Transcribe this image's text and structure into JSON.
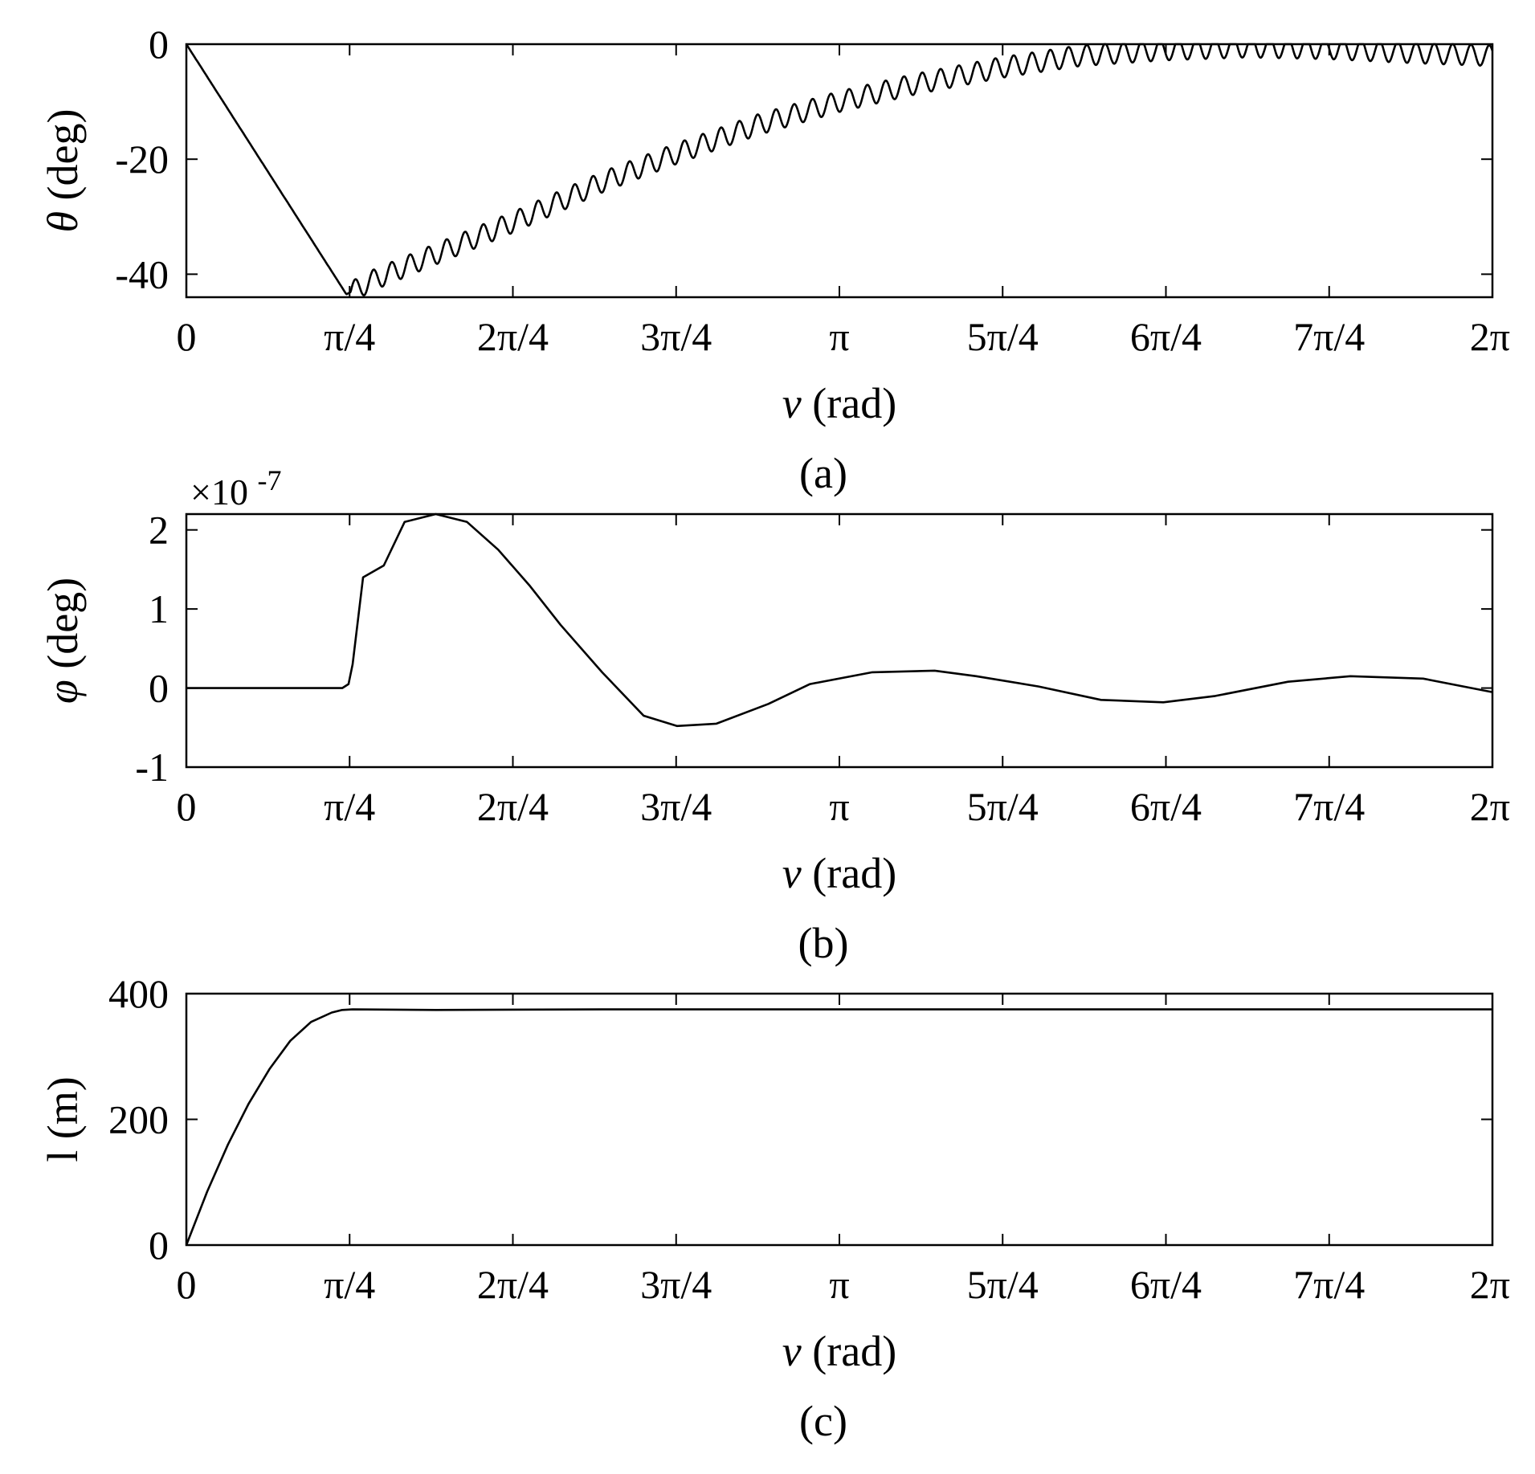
{
  "chart_data": [
    {
      "type": "line",
      "caption": "(a)",
      "ylabel_symbol": "θ",
      "ylabel_unit": "(deg)",
      "xlabel_symbol": "ν",
      "xlabel_unit": "(rad)",
      "xlim": [
        0,
        6.2832
      ],
      "ylim": [
        -44,
        0
      ],
      "xticks": [
        0,
        0.7854,
        1.5708,
        2.3562,
        3.1416,
        3.927,
        4.7124,
        5.4978,
        6.2832
      ],
      "xticklabels": [
        "0",
        "π/4",
        "2π/4",
        "3π/4",
        "π",
        "5π/4",
        "6π/4",
        "7π/4",
        "2π"
      ],
      "yticks": [
        0,
        -20,
        -40
      ],
      "yticklabels": [
        "0",
        "-20",
        "-40"
      ],
      "exponent_label": "",
      "grid": false,
      "series": [
        {
          "color": "#000000",
          "x": [
            0,
            0.77,
            0.9,
            1.2,
            1.57,
            2.0,
            2.36,
            2.75,
            3.14,
            3.5,
            3.93,
            4.3,
            4.71,
            5.1,
            5.5,
            5.9,
            6.28
          ],
          "y": [
            0,
            -43.5,
            -41,
            -36.5,
            -31,
            -24,
            -19,
            -14,
            -10,
            -7,
            -4,
            -2,
            -1,
            -0.5,
            -0.8,
            -1.5,
            -2
          ],
          "oscillation": {
            "start_x": 0.79,
            "amplitude": 1.8,
            "period": 0.088
          }
        }
      ]
    },
    {
      "type": "line",
      "caption": "(b)",
      "ylabel_symbol": "φ",
      "ylabel_unit": "(deg)",
      "xlabel_symbol": "ν",
      "xlabel_unit": "(rad)",
      "xlim": [
        0,
        6.2832
      ],
      "ylim": [
        -1,
        2.2
      ],
      "xticks": [
        0,
        0.7854,
        1.5708,
        2.3562,
        3.1416,
        3.927,
        4.7124,
        5.4978,
        6.2832
      ],
      "xticklabels": [
        "0",
        "π/4",
        "2π/4",
        "3π/4",
        "π",
        "5π/4",
        "6π/4",
        "7π/4",
        "2π"
      ],
      "yticks": [
        2,
        1,
        0,
        -1
      ],
      "yticklabels": [
        "2",
        "1",
        "0",
        "-1"
      ],
      "exponent_label": "×10",
      "exponent_power": "-7",
      "grid": false,
      "series": [
        {
          "color": "#000000",
          "x": [
            0,
            0.75,
            0.78,
            0.8,
            0.85,
            0.95,
            1.05,
            1.2,
            1.35,
            1.5,
            1.65,
            1.8,
            2.0,
            2.2,
            2.36,
            2.55,
            2.8,
            3.0,
            3.3,
            3.6,
            3.8,
            4.1,
            4.4,
            4.7,
            4.95,
            5.3,
            5.6,
            5.95,
            6.28
          ],
          "y": [
            0,
            0,
            0.05,
            0.3,
            1.4,
            1.55,
            2.1,
            2.2,
            2.1,
            1.75,
            1.3,
            0.8,
            0.2,
            -0.35,
            -0.48,
            -0.45,
            -0.2,
            0.05,
            0.2,
            0.22,
            0.15,
            0.02,
            -0.15,
            -0.18,
            -0.1,
            0.08,
            0.15,
            0.12,
            -0.05
          ]
        }
      ]
    },
    {
      "type": "line",
      "caption": "(c)",
      "ylabel_symbol": "l",
      "ylabel_unit": "(m)",
      "xlabel_symbol": "ν",
      "xlabel_unit": "(rad)",
      "xlim": [
        0,
        6.2832
      ],
      "ylim": [
        0,
        400
      ],
      "xticks": [
        0,
        0.7854,
        1.5708,
        2.3562,
        3.1416,
        3.927,
        4.7124,
        5.4978,
        6.2832
      ],
      "xticklabels": [
        "0",
        "π/4",
        "2π/4",
        "3π/4",
        "π",
        "5π/4",
        "6π/4",
        "7π/4",
        "2π"
      ],
      "yticks": [
        400,
        200,
        0
      ],
      "yticklabels": [
        "400",
        "200",
        "0"
      ],
      "exponent_label": "",
      "grid": false,
      "series": [
        {
          "color": "#000000",
          "x": [
            0,
            0.1,
            0.2,
            0.3,
            0.4,
            0.5,
            0.6,
            0.7,
            0.75,
            0.8,
            1.2,
            2.0,
            3.0,
            4.0,
            5.0,
            6.28
          ],
          "y": [
            0,
            85,
            160,
            225,
            280,
            325,
            355,
            370,
            374,
            375,
            374,
            375,
            375,
            375,
            375,
            375
          ]
        }
      ]
    }
  ]
}
